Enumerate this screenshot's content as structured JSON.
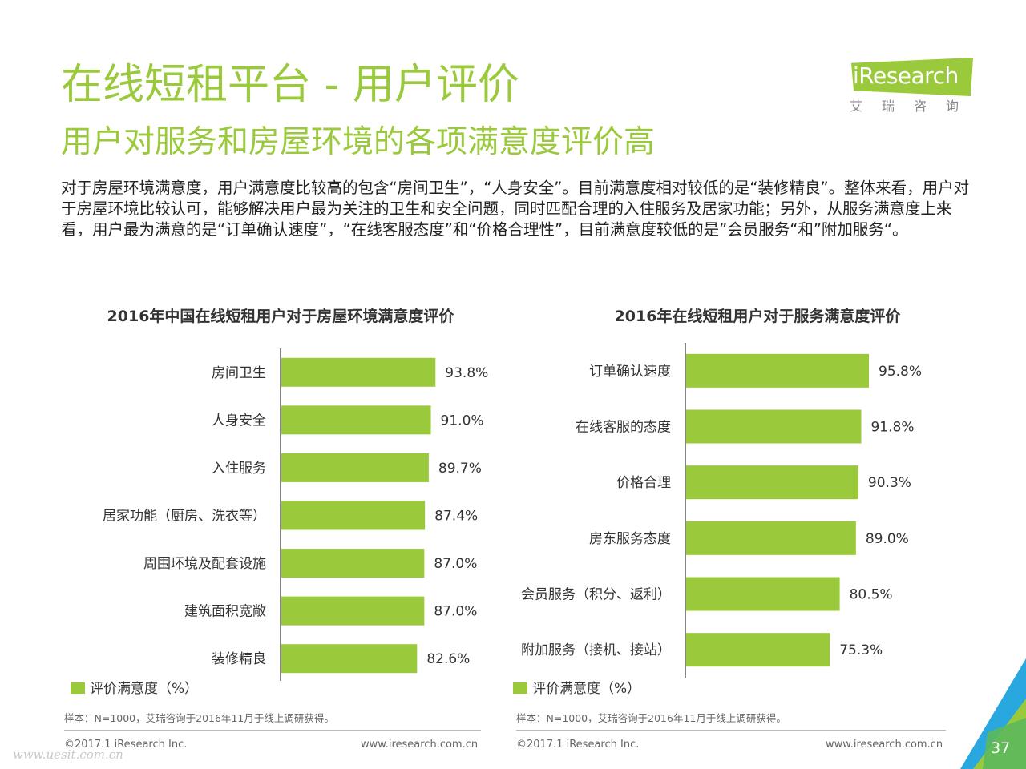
{
  "header": {
    "title": "在线短租平台 - 用户评价",
    "subtitle": "用户对服务和房屋环境的各项满意度评价高"
  },
  "logo": {
    "brand": "iResearch",
    "brand_cn": "艾瑞咨询"
  },
  "intro": "对于房屋环境满意度，用户满意度比较高的包含“房间卫生”，“人身安全”。目前满意度相对较低的是“装修精良”。整体来看，用户对于房屋环境比较认可，能够解决用户最为关注的卫生和安全问题，同时匹配合理的入住服务及居家功能；另外，从服务满意度上来看，用户最为满意的是“订单确认速度”，“在线客服态度”和“价格合理性”，目前满意度较低的是”会员服务“和”附加服务“。",
  "chart_data": [
    {
      "type": "bar",
      "orientation": "horizontal",
      "title": "2016年中国在线短租用户对于房屋环境满意度评价",
      "categories": [
        "房间卫生",
        "人身安全",
        "入住服务",
        "居家功能（厨房、洗衣等）",
        "周围环境及配套设施",
        "建筑面积宽敞",
        "装修精良"
      ],
      "series": [
        {
          "name": "评价满意度（%）",
          "values": [
            93.8,
            91.0,
            89.7,
            87.4,
            87.0,
            87.0,
            82.6
          ]
        }
      ],
      "data_labels": [
        "93.8%",
        "91.0%",
        "89.7%",
        "87.4%",
        "87.0%",
        "87.0%",
        "82.6%"
      ],
      "legend": "bottom-left",
      "source": "样本：N=1000，艾瑞咨询于2016年11月于线上调研获得。",
      "color": "#9ac93b",
      "grid": false
    },
    {
      "type": "bar",
      "orientation": "horizontal",
      "title": "2016年在线短租用户对于服务满意度评价",
      "categories": [
        "订单确认速度",
        "在线客服的态度",
        "价格合理",
        "房东服务态度",
        "会员服务（积分、返利）",
        "附加服务（接机、接站）"
      ],
      "series": [
        {
          "name": "评价满意度（%）",
          "values": [
            95.8,
            91.8,
            90.3,
            89.0,
            80.5,
            75.3
          ]
        }
      ],
      "data_labels": [
        "95.8%",
        "91.8%",
        "90.3%",
        "89.0%",
        "80.5%",
        "75.3%"
      ],
      "legend": "bottom-left",
      "source": "样本：N=1000，艾瑞咨询于2016年11月于线上调研获得。",
      "color": "#9ac93b",
      "grid": false
    }
  ],
  "footer": {
    "copyright": "©2017.1 iResearch Inc.",
    "website": "www.iresearch.com.cn",
    "page_number": "37",
    "watermark": "www.uesit.com.cn"
  },
  "colors": {
    "accent": "#9ac93b",
    "corner_blue": "#29a8e0",
    "corner_green": "#9ac93b"
  }
}
